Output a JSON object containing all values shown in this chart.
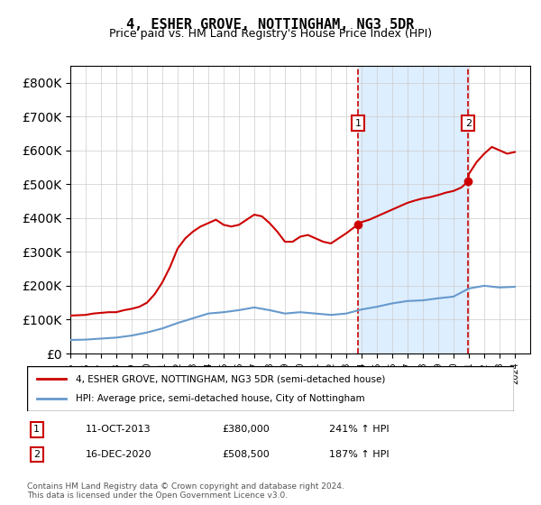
{
  "title": "4, ESHER GROVE, NOTTINGHAM, NG3 5DR",
  "subtitle": "Price paid vs. HM Land Registry's House Price Index (HPI)",
  "legend_line1": "4, ESHER GROVE, NOTTINGHAM, NG3 5DR (semi-detached house)",
  "legend_line2": "HPI: Average price, semi-detached house, City of Nottingham",
  "footnote": "Contains HM Land Registry data © Crown copyright and database right 2024.\nThis data is licensed under the Open Government Licence v3.0.",
  "sale1_label": "1",
  "sale1_date": "11-OCT-2013",
  "sale1_price": "£380,000",
  "sale1_hpi": "241% ↑ HPI",
  "sale2_label": "2",
  "sale2_date": "16-DEC-2020",
  "sale2_price": "£508,500",
  "sale2_hpi": "187% ↑ HPI",
  "sale1_year": 2013.78,
  "sale1_value": 380000,
  "sale2_year": 2020.96,
  "sale2_value": 508500,
  "hpi_color": "#6699cc",
  "price_color": "#cc0000",
  "vline_color": "#cc0000",
  "shade_color": "#ddeeff",
  "ylim": [
    0,
    850000
  ],
  "xlim_start": 1995.0,
  "xlim_end": 2025.0,
  "hpi_years": [
    1995,
    1996,
    1997,
    1998,
    1999,
    2000,
    2001,
    2002,
    2003,
    2004,
    2005,
    2006,
    2007,
    2008,
    2009,
    2010,
    2011,
    2012,
    2013,
    2014,
    2015,
    2016,
    2017,
    2018,
    2019,
    2020,
    2021,
    2022,
    2023,
    2024
  ],
  "hpi_values": [
    40000,
    41000,
    44000,
    47000,
    53000,
    62000,
    74000,
    90000,
    104000,
    118000,
    122000,
    128000,
    136000,
    128000,
    118000,
    122000,
    118000,
    114000,
    118000,
    130000,
    138000,
    148000,
    155000,
    157000,
    163000,
    168000,
    192000,
    200000,
    195000,
    197000
  ],
  "price_years": [
    1995.0,
    1995.5,
    1996.0,
    1996.5,
    1997.0,
    1997.5,
    1998.0,
    1998.5,
    1999.0,
    1999.5,
    2000.0,
    2000.5,
    2001.0,
    2001.5,
    2002.0,
    2002.5,
    2003.0,
    2003.5,
    2004.0,
    2004.5,
    2005.0,
    2005.5,
    2006.0,
    2006.5,
    2007.0,
    2007.5,
    2008.0,
    2008.5,
    2009.0,
    2009.5,
    2010.0,
    2010.5,
    2011.0,
    2011.5,
    2012.0,
    2012.5,
    2013.0,
    2013.5,
    2013.78,
    2014.0,
    2014.5,
    2015.0,
    2015.5,
    2016.0,
    2016.5,
    2017.0,
    2017.5,
    2018.0,
    2018.5,
    2019.0,
    2019.5,
    2020.0,
    2020.5,
    2020.96,
    2021.0,
    2021.5,
    2022.0,
    2022.5,
    2023.0,
    2023.5,
    2024.0
  ],
  "price_values": [
    112000,
    113000,
    114000,
    118000,
    120000,
    122000,
    122000,
    128000,
    132000,
    138000,
    150000,
    175000,
    210000,
    255000,
    310000,
    340000,
    360000,
    375000,
    385000,
    395000,
    380000,
    375000,
    380000,
    395000,
    410000,
    405000,
    385000,
    360000,
    330000,
    330000,
    345000,
    350000,
    340000,
    330000,
    325000,
    340000,
    355000,
    372000,
    380000,
    388000,
    395000,
    405000,
    415000,
    425000,
    435000,
    445000,
    452000,
    458000,
    462000,
    468000,
    475000,
    480000,
    490000,
    508500,
    530000,
    565000,
    590000,
    610000,
    600000,
    590000,
    595000
  ]
}
